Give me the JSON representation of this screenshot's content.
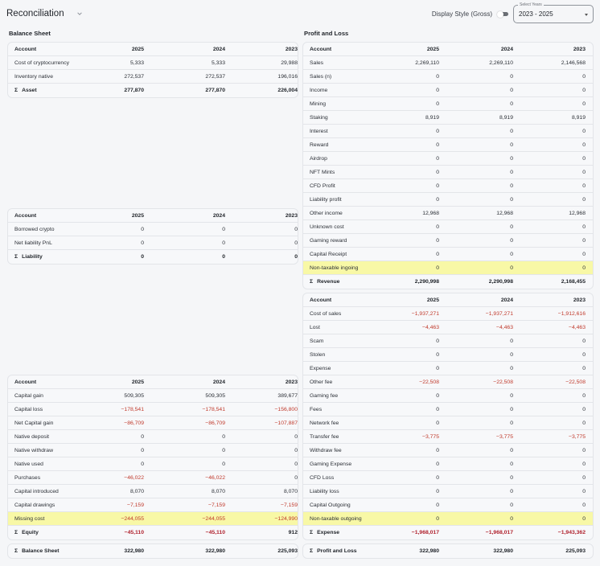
{
  "header": {
    "title": "Reconciliation",
    "display_style_label": "Display Style (Gross)",
    "display_style_on": false,
    "select_years": {
      "legend": "Select Years",
      "value": "2023 - 2025"
    }
  },
  "colors": {
    "negative": "#c0392b",
    "highlight": "#f8f8a6",
    "background": "#f5f6f8",
    "card": "#f7f8fa"
  },
  "balance_sheet": {
    "label": "Balance Sheet",
    "columns": [
      "Account",
      "2025",
      "2024",
      "2023"
    ],
    "asset": {
      "rows": [
        {
          "name": "Cost of cryptocurrency",
          "v": [
            "5,333",
            "5,333",
            "29,988"
          ]
        },
        {
          "name": "Inventory native",
          "v": [
            "272,537",
            "272,537",
            "196,016"
          ]
        }
      ],
      "sum": {
        "name": "Asset",
        "v": [
          "277,870",
          "277,870",
          "226,004"
        ]
      }
    },
    "liability": {
      "rows": [
        {
          "name": "Borrowed crypto",
          "v": [
            "0",
            "0",
            "0"
          ]
        },
        {
          "name": "Net liability PnL",
          "v": [
            "0",
            "0",
            "0"
          ]
        }
      ],
      "sum": {
        "name": "Liability",
        "v": [
          "0",
          "0",
          "0"
        ]
      }
    },
    "equity": {
      "rows": [
        {
          "name": "Capital gain",
          "v": [
            "509,305",
            "509,305",
            "389,677"
          ]
        },
        {
          "name": "Capital loss",
          "v": [
            "−178,541",
            "−178,541",
            "−156,800"
          ]
        },
        {
          "name": "Net Capital gain",
          "v": [
            "−86,709",
            "−86,709",
            "−107,887"
          ]
        },
        {
          "name": "Native deposit",
          "v": [
            "0",
            "0",
            "0"
          ]
        },
        {
          "name": "Native withdraw",
          "v": [
            "0",
            "0",
            "0"
          ]
        },
        {
          "name": "Native used",
          "v": [
            "0",
            "0",
            "0"
          ]
        },
        {
          "name": "Purchases",
          "v": [
            "−46,022",
            "−46,022",
            "0"
          ]
        },
        {
          "name": "Capital introduced",
          "v": [
            "8,070",
            "8,070",
            "8,070"
          ]
        },
        {
          "name": "Capital drawings",
          "v": [
            "−7,159",
            "−7,159",
            "−7,159"
          ]
        },
        {
          "name": "Missing cost",
          "v": [
            "−244,055",
            "−244,055",
            "−124,990"
          ],
          "highlight": true
        }
      ],
      "sum": {
        "name": "Equity",
        "v": [
          "−45,110",
          "−45,110",
          "912"
        ]
      }
    },
    "total": {
      "name": "Balance Sheet",
      "v": [
        "322,980",
        "322,980",
        "225,093"
      ]
    }
  },
  "profit_and_loss": {
    "label": "Profit and Loss",
    "columns": [
      "Account",
      "2025",
      "2024",
      "2023"
    ],
    "revenue": {
      "rows": [
        {
          "name": "Sales",
          "v": [
            "2,269,110",
            "2,269,110",
            "2,146,568"
          ]
        },
        {
          "name": "Sales (n)",
          "v": [
            "0",
            "0",
            "0"
          ]
        },
        {
          "name": "Income",
          "v": [
            "0",
            "0",
            "0"
          ]
        },
        {
          "name": "Mining",
          "v": [
            "0",
            "0",
            "0"
          ]
        },
        {
          "name": "Staking",
          "v": [
            "8,919",
            "8,919",
            "8,919"
          ]
        },
        {
          "name": "Interest",
          "v": [
            "0",
            "0",
            "0"
          ]
        },
        {
          "name": "Reward",
          "v": [
            "0",
            "0",
            "0"
          ]
        },
        {
          "name": "Airdrop",
          "v": [
            "0",
            "0",
            "0"
          ]
        },
        {
          "name": "NFT Mints",
          "v": [
            "0",
            "0",
            "0"
          ]
        },
        {
          "name": "CFD Profit",
          "v": [
            "0",
            "0",
            "0"
          ]
        },
        {
          "name": "Liability profit",
          "v": [
            "0",
            "0",
            "0"
          ]
        },
        {
          "name": "Other income",
          "v": [
            "12,968",
            "12,968",
            "12,968"
          ]
        },
        {
          "name": "Unknown cost",
          "v": [
            "0",
            "0",
            "0"
          ]
        },
        {
          "name": "Gaming reward",
          "v": [
            "0",
            "0",
            "0"
          ]
        },
        {
          "name": "Capital Receipt",
          "v": [
            "0",
            "0",
            "0"
          ]
        },
        {
          "name": "Non-taxable ingoing",
          "v": [
            "0",
            "0",
            "0"
          ],
          "highlight": true
        }
      ],
      "sum": {
        "name": "Revenue",
        "v": [
          "2,290,998",
          "2,290,998",
          "2,168,455"
        ]
      }
    },
    "expense": {
      "rows": [
        {
          "name": "Cost of sales",
          "v": [
            "−1,937,271",
            "−1,937,271",
            "−1,912,616"
          ]
        },
        {
          "name": "Lost",
          "v": [
            "−4,463",
            "−4,463",
            "−4,463"
          ]
        },
        {
          "name": "Scam",
          "v": [
            "0",
            "0",
            "0"
          ]
        },
        {
          "name": "Stolen",
          "v": [
            "0",
            "0",
            "0"
          ]
        },
        {
          "name": "Expense",
          "v": [
            "0",
            "0",
            "0"
          ]
        },
        {
          "name": "Other fee",
          "v": [
            "−22,508",
            "−22,508",
            "−22,508"
          ]
        },
        {
          "name": "Gaming fee",
          "v": [
            "0",
            "0",
            "0"
          ]
        },
        {
          "name": "Fees",
          "v": [
            "0",
            "0",
            "0"
          ]
        },
        {
          "name": "Network fee",
          "v": [
            "0",
            "0",
            "0"
          ]
        },
        {
          "name": "Transfer fee",
          "v": [
            "−3,775",
            "−3,775",
            "−3,775"
          ]
        },
        {
          "name": "Withdraw fee",
          "v": [
            "0",
            "0",
            "0"
          ]
        },
        {
          "name": "Gaming Expense",
          "v": [
            "0",
            "0",
            "0"
          ]
        },
        {
          "name": "CFD Loss",
          "v": [
            "0",
            "0",
            "0"
          ]
        },
        {
          "name": "Liability loss",
          "v": [
            "0",
            "0",
            "0"
          ]
        },
        {
          "name": "Capital Outgoing",
          "v": [
            "0",
            "0",
            "0"
          ]
        },
        {
          "name": "Non-taxable outgoing",
          "v": [
            "0",
            "0",
            "0"
          ],
          "highlight": true
        }
      ],
      "sum": {
        "name": "Expense",
        "v": [
          "−1,968,017",
          "−1,968,017",
          "−1,943,362"
        ]
      }
    },
    "total": {
      "name": "Profit and Loss",
      "v": [
        "322,980",
        "322,980",
        "225,093"
      ]
    }
  },
  "icons": {
    "sigma": "Σ",
    "title_chevron": "chevron-down-icon",
    "select_caret": "caret-down-icon"
  }
}
